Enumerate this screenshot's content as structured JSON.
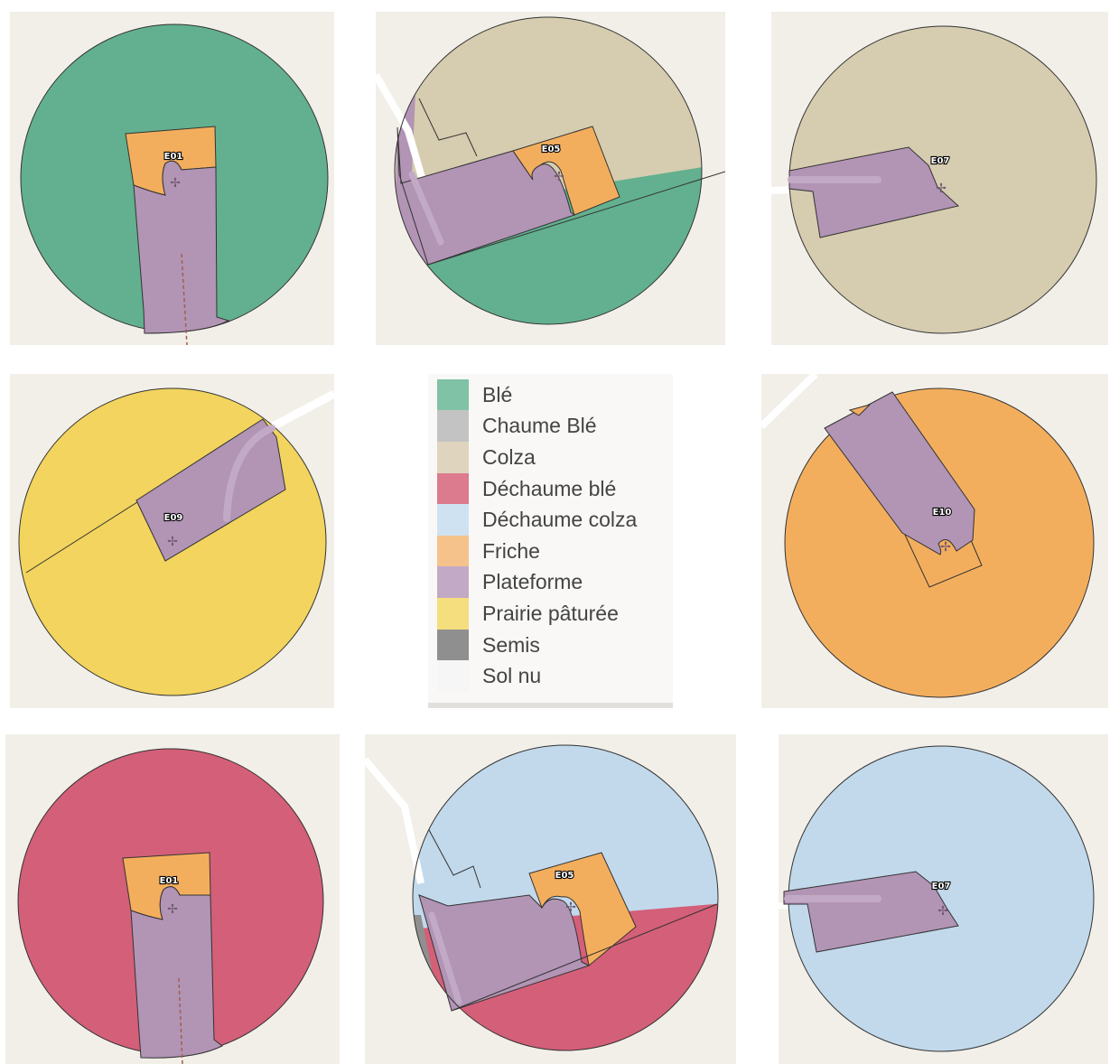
{
  "colors": {
    "ble": "#62b08f",
    "colza": "#d6ccaf",
    "friche": "#f3ae5d",
    "plateforme": "#b294b5",
    "prairie": "#f2d45e",
    "dechaume_ble": "#d45f78",
    "dechaume_colza": "#c2d9ec",
    "semis": "#8f8f8f",
    "background": "#f2efe9"
  },
  "turbines": [
    "E01",
    "E05",
    "E07",
    "E09",
    "E10",
    "E01",
    "E05",
    "E07"
  ],
  "legend": [
    {
      "label": "Blé",
      "color": "#80c2a5"
    },
    {
      "label": "Chaume Blé",
      "color": "#c3c3c3"
    },
    {
      "label": "Colza",
      "color": "#dfd5be"
    },
    {
      "label": "Déchaume blé",
      "color": "#dc7b8e"
    },
    {
      "label": "Déchaume colza",
      "color": "#cfe2f2"
    },
    {
      "label": "Friche",
      "color": "#f6c28b"
    },
    {
      "label": "Plateforme",
      "color": "#c2aac6"
    },
    {
      "label": "Prairie pâturée",
      "color": "#f5de7e"
    },
    {
      "label": "Semis",
      "color": "#8f8f8f"
    },
    {
      "label": "Sol nu",
      "color": "#f6f6f6"
    }
  ]
}
